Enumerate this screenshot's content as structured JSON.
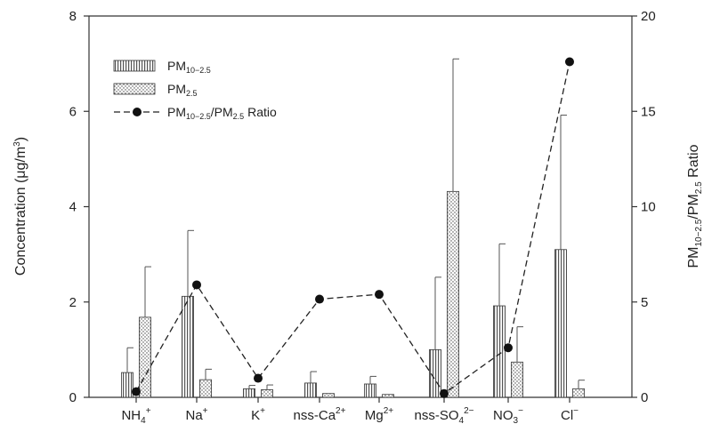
{
  "chart_data": {
    "type": "bar",
    "categories": [
      "NH4+",
      "Na+",
      "K+",
      "nss-Ca2+",
      "Mg2+",
      "nss-SO42−",
      "NO3−",
      "Cl−"
    ],
    "category_labels": [
      {
        "base": "NH",
        "sub": "4",
        "sup": "+"
      },
      {
        "base": "Na",
        "sub": "",
        "sup": "+"
      },
      {
        "base": "K",
        "sub": "",
        "sup": "+"
      },
      {
        "base": "nss-Ca",
        "sub": "",
        "sup": "2+"
      },
      {
        "base": "Mg",
        "sub": "",
        "sup": "2+"
      },
      {
        "base": "nss-SO",
        "sub": "4",
        "sup": "2−"
      },
      {
        "base": "NO",
        "sub": "3",
        "sup": "−"
      },
      {
        "base": "Cl",
        "sub": "",
        "sup": "−"
      }
    ],
    "series": [
      {
        "name": "PM10–2.5",
        "kind": "bar",
        "pattern": "vertical-hatch",
        "values": [
          0.52,
          2.12,
          0.18,
          0.3,
          0.28,
          1.0,
          1.92,
          3.1
        ],
        "error": [
          0.52,
          1.38,
          0.07,
          0.24,
          0.16,
          1.52,
          1.3,
          2.82
        ]
      },
      {
        "name": "PM2.5",
        "kind": "bar",
        "pattern": "dotted",
        "values": [
          1.68,
          0.37,
          0.16,
          0.08,
          0.06,
          4.32,
          0.74,
          0.18
        ],
        "error": [
          1.06,
          0.22,
          0.1,
          0.0,
          0.0,
          2.78,
          0.74,
          0.18
        ]
      },
      {
        "name": "PM10–2.5/PM2.5 Ratio",
        "kind": "line",
        "axis": "right",
        "values": [
          0.3,
          5.9,
          1.0,
          5.15,
          5.4,
          0.2,
          2.6,
          17.6
        ]
      }
    ],
    "legend": [
      {
        "base": "PM",
        "sub": "10−2.5",
        "rest": "",
        "sub2": "",
        "tail": ""
      },
      {
        "base": "PM",
        "sub": "2.5",
        "rest": "",
        "sub2": "",
        "tail": ""
      },
      {
        "base": "PM",
        "sub": "10−2.5",
        "rest": "/PM",
        "sub2": "2.5",
        "tail": " Ratio"
      }
    ],
    "ylabel": {
      "text": "Concentration (μg/m",
      "sup": "3",
      "close": ")"
    },
    "y2label": {
      "base": "PM",
      "sub": "10−2.5",
      "rest": "/PM",
      "sub2": "2.5",
      "tail": " Ratio"
    },
    "ylim": [
      0,
      8
    ],
    "y2lim": [
      0,
      20
    ],
    "yticks": [
      0,
      2,
      4,
      6,
      8
    ],
    "y2ticks": [
      0,
      5,
      10,
      15,
      20
    ],
    "legend_position": "top-left",
    "grid": false
  }
}
